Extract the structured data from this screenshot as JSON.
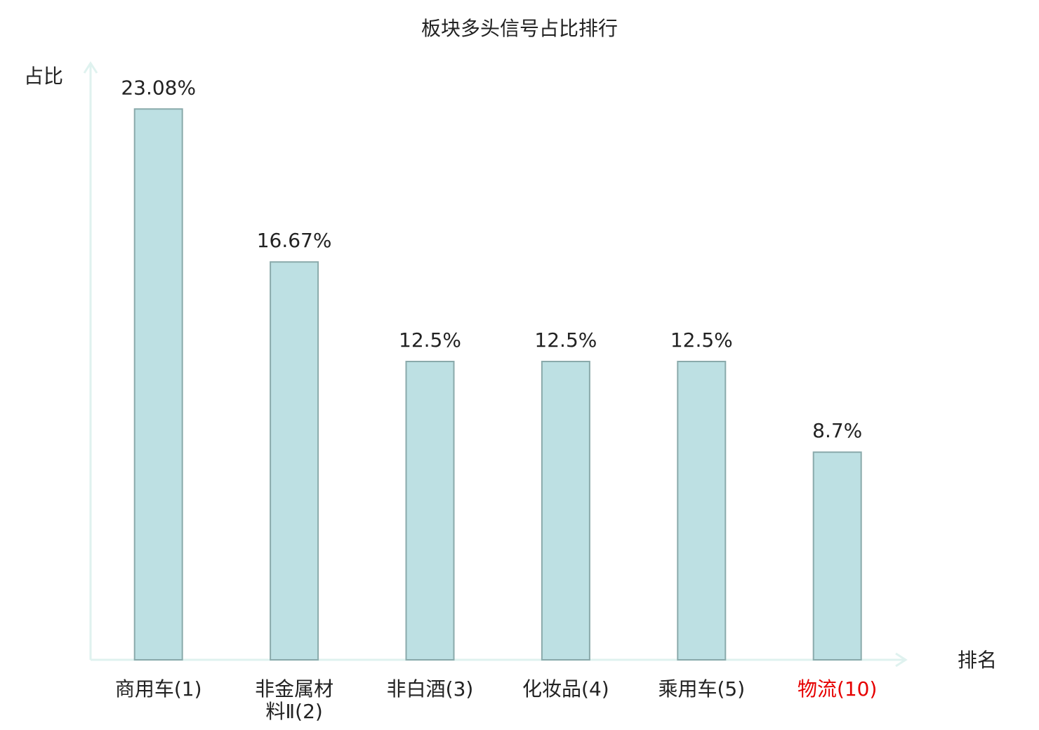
{
  "chart_data": {
    "type": "bar",
    "title": "板块多头信号占比排行",
    "y_label": "占比",
    "x_label": "排名",
    "categories": [
      "商用车(1)",
      "非金属材料Ⅱ(2)",
      "非白酒(3)",
      "化妆品(4)",
      "乘用车(5)",
      "物流(10)"
    ],
    "category_colors": [
      "#222222",
      "#222222",
      "#222222",
      "#222222",
      "#222222",
      "#e60000"
    ],
    "values": [
      23.08,
      16.67,
      12.5,
      12.5,
      12.5,
      8.7
    ],
    "value_labels": [
      "23.08%",
      "16.67%",
      "12.5%",
      "12.5%",
      "12.5%",
      "8.7%"
    ],
    "color": "#bde0e3",
    "edge_color": "#8aaaab",
    "axis_color": "#dff2ef",
    "ylim": [
      0,
      25
    ]
  }
}
